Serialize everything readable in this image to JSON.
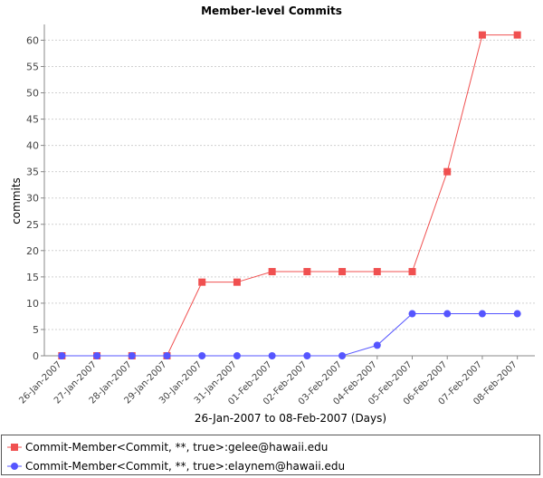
{
  "chart_data": {
    "type": "line",
    "title": "Member-level Commits",
    "xlabel": "26-Jan-2007 to 08-Feb-2007 (Days)",
    "ylabel": "commits",
    "ylim": [
      0,
      63
    ],
    "yticks": [
      0,
      5,
      10,
      15,
      20,
      25,
      30,
      35,
      40,
      45,
      50,
      55,
      60
    ],
    "grid": true,
    "legend_position": "bottom",
    "categories": [
      "26-Jan-2007",
      "27-Jan-2007",
      "28-Jan-2007",
      "29-Jan-2007",
      "30-Jan-2007",
      "31-Jan-2007",
      "01-Feb-2007",
      "02-Feb-2007",
      "03-Feb-2007",
      "04-Feb-2007",
      "05-Feb-2007",
      "06-Feb-2007",
      "07-Feb-2007",
      "08-Feb-2007"
    ],
    "series": [
      {
        "name": "Commit-Member<Commit, **, true>:gelee@hawaii.edu",
        "color": "#f05050",
        "marker": "square",
        "values": [
          0,
          0,
          0,
          0,
          14,
          14,
          16,
          16,
          16,
          16,
          16,
          35,
          61,
          61
        ]
      },
      {
        "name": "Commit-Member<Commit, **, true>:elaynem@hawaii.edu",
        "color": "#5555ff",
        "marker": "circle",
        "values": [
          0,
          0,
          0,
          0,
          0,
          0,
          0,
          0,
          0,
          2,
          8,
          8,
          8,
          8
        ]
      }
    ]
  }
}
